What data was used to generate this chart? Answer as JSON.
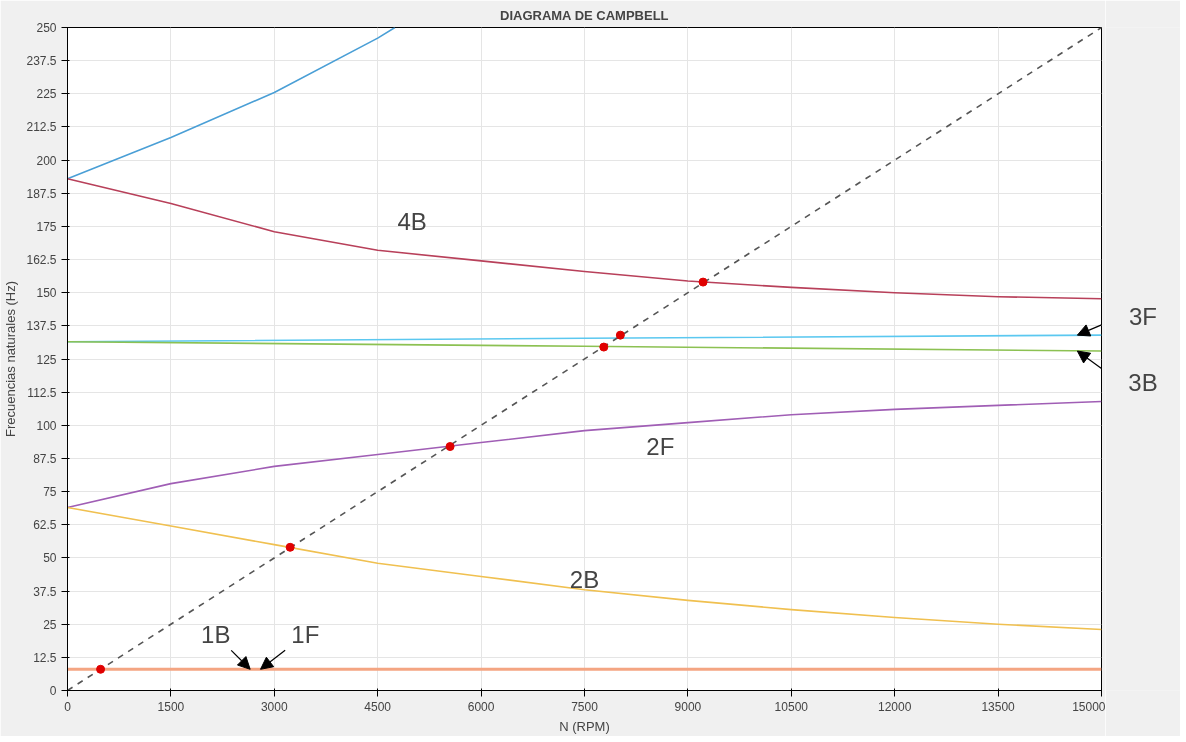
{
  "chart_data": {
    "type": "line",
    "title": "DIAGRAMA DE CAMPBELL",
    "xlabel": "N (RPM)",
    "ylabel": "Frecuencias naturales (Hz)",
    "xlim": [
      0,
      15000
    ],
    "ylim": [
      0,
      250
    ],
    "xticks": [
      0,
      1500,
      3000,
      4500,
      6000,
      7500,
      9000,
      10500,
      12000,
      13500,
      15000
    ],
    "yticks": [
      0,
      12.5,
      25,
      37.5,
      50,
      62.5,
      75,
      87.5,
      100,
      112.5,
      125,
      137.5,
      150,
      162.5,
      175,
      187.5,
      200,
      212.5,
      225,
      237.5,
      250
    ],
    "grid": true,
    "marker": "none",
    "line_style": "solid",
    "series": [
      {
        "color": "#4a9fd6",
        "x": [
          0,
          1500,
          3000,
          4500,
          4750
        ],
        "values": [
          193,
          208.5,
          225.5,
          246,
          250
        ]
      },
      {
        "color": "#b8405a",
        "x": [
          0,
          1500,
          3000,
          4500,
          6000,
          7500,
          9000,
          10500,
          12000,
          13500,
          15000
        ],
        "values": [
          193,
          183.6,
          173,
          166,
          162,
          158,
          154.4,
          152,
          150,
          148.5,
          147.7
        ]
      },
      {
        "color": "#5bc8f0",
        "x": [
          0,
          7500,
          15000
        ],
        "values": [
          131.5,
          132.8,
          134
        ]
      },
      {
        "color": "#8cc152",
        "x": [
          0,
          7500,
          15000
        ],
        "values": [
          131.5,
          129.8,
          128
        ]
      },
      {
        "color": "#a05eb5",
        "x": [
          0,
          1500,
          3000,
          4500,
          6000,
          7500,
          9000,
          10500,
          12000,
          13500,
          15000
        ],
        "values": [
          69,
          78,
          84.5,
          89,
          93.5,
          98,
          101,
          104,
          106,
          107.5,
          109
        ]
      },
      {
        "color": "#f0c050",
        "x": [
          0,
          1500,
          3000,
          4500,
          6000,
          7500,
          9000,
          10500,
          12000,
          13500,
          15000
        ],
        "values": [
          69,
          62,
          55,
          48,
          43,
          38,
          34,
          30.5,
          27.5,
          25,
          23
        ]
      },
      {
        "color": "#f4a582",
        "x": [
          0,
          15000
        ],
        "values": [
          8,
          8
        ]
      },
      {
        "color": "#555555",
        "line_style": "dashed",
        "x": [
          0,
          15000
        ],
        "values": [
          0,
          250
        ]
      },
      {
        "type": "scatter",
        "color": "#e00000",
        "marker": "circle",
        "x": [
          480,
          3230,
          5550,
          7780,
          8020,
          9220
        ],
        "values": [
          8,
          54,
          92,
          129.5,
          134,
          154
        ]
      }
    ],
    "annotations": [
      "4B",
      "2F",
      "2B",
      {
        "text": "1B",
        "x": 2650,
        "y": 8
      },
      {
        "text": "1F",
        "x": 2800,
        "y": 8
      },
      {
        "text": "3F",
        "x": 14650,
        "y": 134
      },
      {
        "text": "3B",
        "x": 14650,
        "y": 128
      }
    ]
  }
}
